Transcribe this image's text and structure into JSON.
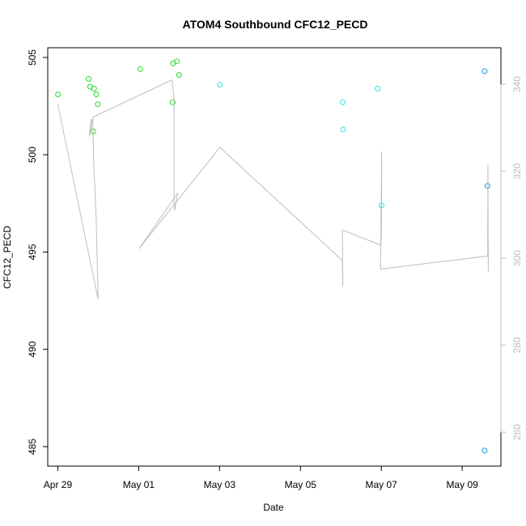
{
  "chart_data": {
    "type": "scatter",
    "title": "ATOM4 Southbound CFC12_PECD",
    "xlabel": "Date",
    "ylabel": "CFC12_PECD",
    "x_ticks": [
      "Apr 29",
      "May 01",
      "May 03",
      "May 05",
      "May 07",
      "May 09"
    ],
    "xlim": [
      "2018-04-28 18:00",
      "2018-05-09 23:00"
    ],
    "y_ticks_left": [
      485,
      490,
      495,
      500,
      505
    ],
    "ylim_left": [
      484.0,
      505.5
    ],
    "y_ticks_right": [
      260,
      280,
      300,
      320,
      340
    ],
    "ylim_right": [
      252.2,
      348.4
    ],
    "grid": false,
    "series": [
      {
        "color": "#22dd22",
        "axis": "left",
        "points": [
          {
            "x": "2018-04-29 00:05",
            "y": 503.1
          },
          {
            "x": "2018-04-29 18:15",
            "y": 503.9
          },
          {
            "x": "2018-04-29 19:10",
            "y": 503.5
          },
          {
            "x": "2018-04-29 21:00",
            "y": 501.2
          },
          {
            "x": "2018-04-29 21:30",
            "y": 503.4
          },
          {
            "x": "2018-04-29 22:50",
            "y": 503.1
          },
          {
            "x": "2018-04-29 23:40",
            "y": 502.6
          },
          {
            "x": "2018-05-01 00:55",
            "y": 504.4
          },
          {
            "x": "2018-05-01 20:10",
            "y": 502.7
          },
          {
            "x": "2018-05-01 20:25",
            "y": 504.7
          },
          {
            "x": "2018-05-01 22:40",
            "y": 504.8
          },
          {
            "x": "2018-05-02 00:00",
            "y": 504.1
          }
        ]
      },
      {
        "color": "#22e6e6",
        "axis": "left",
        "points": [
          {
            "x": "2018-05-03 00:05",
            "y": 503.6
          },
          {
            "x": "2018-05-06 01:10",
            "y": 502.7
          },
          {
            "x": "2018-05-06 01:20",
            "y": 501.3
          },
          {
            "x": "2018-05-06 21:50",
            "y": 503.4
          },
          {
            "x": "2018-05-07 00:10",
            "y": 497.4
          }
        ]
      },
      {
        "color": "#1a9de6",
        "axis": "left",
        "points": [
          {
            "x": "2018-05-09 13:20",
            "y": 504.3
          },
          {
            "x": "2018-05-09 13:20",
            "y": 484.8
          },
          {
            "x": "2018-05-09 15:00",
            "y": 498.4
          }
        ]
      },
      {
        "type": "line",
        "color": "#bdbdbd",
        "axis": "right",
        "points": [
          {
            "x": "2018-04-28 23:55",
            "y": 335.5
          },
          {
            "x": "2018-04-29 23:55",
            "y": 290.5
          },
          {
            "x": "2018-04-29 22:40",
            "y": 310.0
          },
          {
            "x": "2018-04-29 21:45",
            "y": 318.0
          },
          {
            "x": "2018-04-29 21:25",
            "y": 319.5
          },
          {
            "x": "2018-04-29 20:50",
            "y": 330.0
          },
          {
            "x": "2018-04-29 20:45",
            "y": 332.0
          },
          {
            "x": "2018-04-29 18:35",
            "y": 328.0
          },
          {
            "x": "2018-04-29 19:45",
            "y": 332.0
          },
          {
            "x": "2018-04-29 20:40",
            "y": 331.0
          },
          {
            "x": "2018-04-29 21:00",
            "y": 332.5
          },
          {
            "x": "2018-05-01 19:40",
            "y": 341.0
          },
          {
            "x": "2018-05-01 20:55",
            "y": 337.0
          },
          {
            "x": "2018-05-01 21:00",
            "y": 312.5
          },
          {
            "x": "2018-05-01 21:20",
            "y": 311.0
          },
          {
            "x": "2018-05-01 23:15",
            "y": 315.0
          },
          {
            "x": "2018-05-01 00:10",
            "y": 302.2
          },
          {
            "x": "2018-05-03 00:10",
            "y": 325.5
          },
          {
            "x": "2018-05-06 00:50",
            "y": 299.5
          },
          {
            "x": "2018-05-06 01:10",
            "y": 293.5
          },
          {
            "x": "2018-05-06 00:55",
            "y": 306.5
          },
          {
            "x": "2018-05-06 23:50",
            "y": 303.0
          },
          {
            "x": "2018-05-07 00:10",
            "y": 308.0
          },
          {
            "x": "2018-05-07 00:15",
            "y": 324.5
          },
          {
            "x": "2018-05-06 23:30",
            "y": 297.5
          },
          {
            "x": "2018-05-09 15:10",
            "y": 300.5
          },
          {
            "x": "2018-05-09 15:15",
            "y": 321.5
          },
          {
            "x": "2018-05-09 15:30",
            "y": 297.0
          }
        ]
      }
    ]
  }
}
